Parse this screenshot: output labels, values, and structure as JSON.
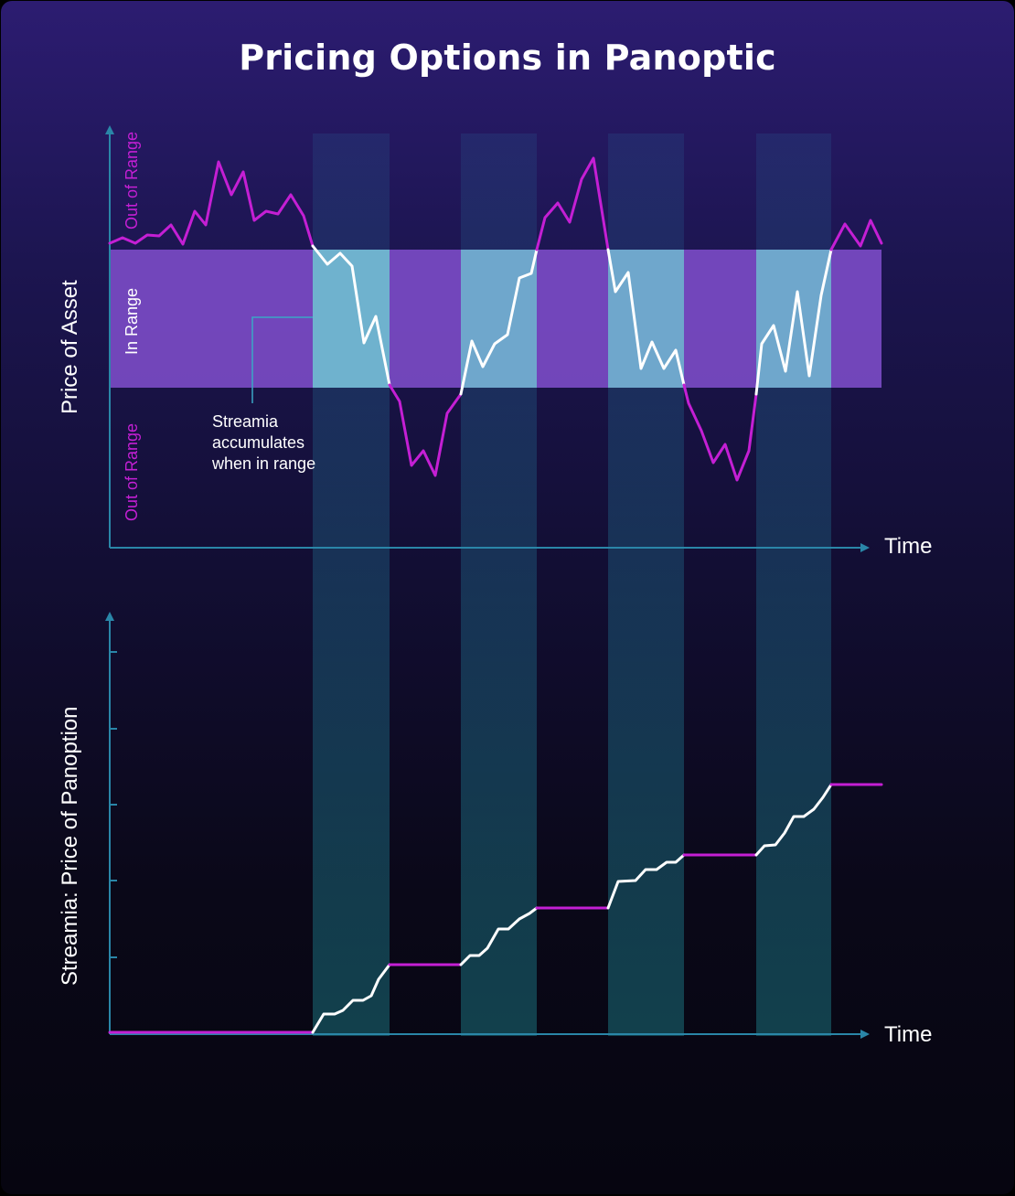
{
  "title": "Pricing Options in Panoptic",
  "colors": {
    "magenta": "#c41fd4",
    "white_line": "#ffffff",
    "axis": "#2a86a8",
    "in_range_band": "#7a4bc4",
    "in_range_highlight": "#6fb8cf",
    "column": "#1e6f86"
  },
  "top_chart": {
    "y_label": "Price of Asset",
    "x_label": "Time",
    "zones": {
      "upper": "Out of Range",
      "middle": "In Range",
      "lower": "Out of Range"
    },
    "annotation": [
      "Streamia",
      "accumulates",
      "when in range"
    ]
  },
  "bottom_chart": {
    "y_label": "Streamia: Price of Panoption",
    "x_label": "Time"
  },
  "chart_data": [
    {
      "type": "line",
      "panel": "top",
      "series_description": "Asset price path over time; white where inside the range, magenta where outside",
      "in_range_intervals": [
        [
          341,
          425
        ],
        [
          503,
          586
        ],
        [
          664,
          747
        ],
        [
          826,
          908
        ]
      ]
    },
    {
      "type": "line",
      "panel": "bottom",
      "series_description": "Streamia accumulates (rises, white) only while price is in range; flat (magenta) while out of range",
      "y_ticks": 5
    }
  ]
}
